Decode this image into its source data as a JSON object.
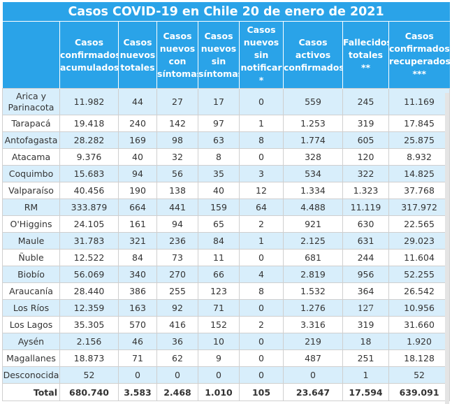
{
  "title": "Casos COVID-19 en Chile 20 de enero de 2021",
  "headers": [
    "",
    "Casos\nconfirmados\nacumulados",
    "Casos\nnuevos\ntotales",
    "Casos\nnuevos\ncon\nsíntomas",
    "Casos\nnuevos\nsin\nsíntomas",
    "Casos\nnuevos\nsin\nnotificar\n*",
    "Casos\nactivos\nconfirmados",
    "Fallecidos\ntotales\n**",
    "Casos\nconfirmados\nrecuperados\n***"
  ],
  "rows": [
    [
      "Arica y\nParinacota",
      "11.982",
      "44",
      "27",
      "17",
      "0",
      "559",
      "245",
      "11.169"
    ],
    [
      "Tarapacá",
      "19.418",
      "240",
      "142",
      "97",
      "1",
      "1.253",
      "319",
      "17.845"
    ],
    [
      "Antofagasta",
      "28.282",
      "169",
      "98",
      "63",
      "8",
      "1.774",
      "605",
      "25.875"
    ],
    [
      "Atacama",
      "9.376",
      "40",
      "32",
      "8",
      "0",
      "328",
      "120",
      "8.932"
    ],
    [
      "Coquimbo",
      "15.683",
      "94",
      "56",
      "35",
      "3",
      "534",
      "322",
      "14.825"
    ],
    [
      "Valparaíso",
      "40.456",
      "190",
      "138",
      "40",
      "12",
      "1.334",
      "1.323",
      "37.768"
    ],
    [
      "RM",
      "333.879",
      "664",
      "441",
      "159",
      "64",
      "4.488",
      "11.119",
      "317.972"
    ],
    [
      "O'Higgins",
      "24.105",
      "161",
      "94",
      "65",
      "2",
      "921",
      "630",
      "22.565"
    ],
    [
      "Maule",
      "31.783",
      "321",
      "236",
      "84",
      "1",
      "2.125",
      "631",
      "29.023"
    ],
    [
      "Ñuble",
      "12.522",
      "84",
      "73",
      "11",
      "0",
      "681",
      "244",
      "11.604"
    ],
    [
      "Biobío",
      "56.069",
      "340",
      "270",
      "66",
      "4",
      "2.819",
      "956",
      "52.255"
    ],
    [
      "Araucanía",
      "28.440",
      "386",
      "255",
      "123",
      "8",
      "1.532",
      "364",
      "26.542"
    ],
    [
      "Los Ríos",
      "12.359",
      "163",
      "92",
      "71",
      "0",
      "1.276",
      "127",
      "10.956"
    ],
    [
      "Los Lagos",
      "35.305",
      "570",
      "416",
      "152",
      "2",
      "3.316",
      "319",
      "31.660"
    ],
    [
      "Aysén",
      "2.156",
      "46",
      "36",
      "10",
      "0",
      "219",
      "18",
      "1.920"
    ],
    [
      "Magallanes",
      "18.873",
      "71",
      "62",
      "9",
      "0",
      "487",
      "251",
      "18.128"
    ],
    [
      "Desconocida",
      "52",
      "0",
      "0",
      "0",
      "0",
      "0",
      "1",
      "52"
    ]
  ],
  "total": [
    "Total",
    "680.740",
    "3.583",
    "2.468",
    "1.010",
    "105",
    "23.647",
    "17.594",
    "639.091"
  ],
  "colors": {
    "header_bg": "#2aa3e8",
    "row_alt": "#d8eefb",
    "text": "#333333"
  }
}
